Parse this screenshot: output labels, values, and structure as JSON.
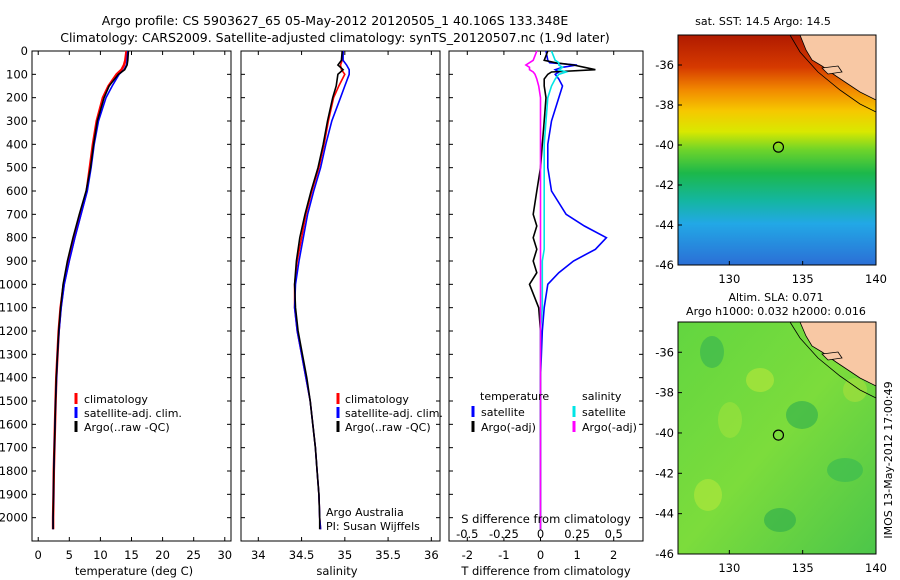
{
  "header": {
    "line1": "Argo profile: CS 5903627_65 05-May-2012 20120505_1 40.106S 133.348E",
    "line2": "Climatology: CARS2009. Satellite-adjusted climatology: synTS_20120507.nc (1.9d later)"
  },
  "side_label": "IMOS 13-May-2012 17:00:49",
  "map_top": {
    "title": "sat. SST: 14.5 Argo: 14.5"
  },
  "map_bottom": {
    "title1": "Altim. SLA: 0.071",
    "title2": "Argo h1000: 0.032 h2000: 0.016"
  },
  "notes": {
    "credit1": "Argo Australia",
    "credit2": "PI: Susan Wijffels"
  },
  "legend_profiles": [
    "climatology",
    "satellite-adj. clim.",
    "Argo(..raw -QC)"
  ],
  "legend_diff": {
    "temp_head": "temperature",
    "sal_head": "salinity",
    "items": [
      "satellite",
      "Argo(-adj)",
      "satellite",
      "Argo(-adj)"
    ]
  },
  "colors": {
    "climatology": "#ff0000",
    "satellite": "#0000ff",
    "argo": "#000000",
    "sal_satellite": "#00e5e5",
    "sal_argo": "#ff00ff"
  },
  "chart_data": [
    {
      "type": "line",
      "xlabel": "temperature (deg C)",
      "ylim": [
        2100,
        0
      ],
      "xlim": [
        -1,
        31
      ],
      "xticks": [
        0,
        5,
        10,
        15,
        20,
        25,
        30
      ],
      "yticks": [
        0,
        100,
        200,
        300,
        400,
        500,
        600,
        700,
        800,
        900,
        1000,
        1100,
        1200,
        1300,
        1400,
        1500,
        1600,
        1700,
        1800,
        1900,
        2000
      ],
      "depth": [
        0,
        40,
        60,
        80,
        100,
        150,
        200,
        300,
        400,
        500,
        600,
        700,
        800,
        900,
        1000,
        1100,
        1200,
        1300,
        1400,
        1500,
        1600,
        1700,
        1800,
        1900,
        2000,
        2050
      ],
      "series": [
        {
          "name": "climatology",
          "values": [
            14.2,
            14.0,
            13.8,
            13.4,
            12.6,
            11.3,
            10.4,
            9.4,
            8.8,
            8.3,
            7.8,
            6.8,
            5.8,
            4.9,
            4.1,
            3.6,
            3.3,
            3.1,
            2.9,
            2.8,
            2.7,
            2.6,
            2.5,
            2.45,
            2.4,
            2.4
          ]
        },
        {
          "name": "satellite-adj. clim.",
          "values": [
            14.4,
            14.3,
            14.2,
            13.8,
            13.0,
            11.9,
            10.9,
            9.7,
            9.0,
            8.5,
            7.9,
            6.9,
            5.9,
            5.0,
            4.2,
            3.7,
            3.35,
            3.1,
            2.95,
            2.8,
            2.7,
            2.6,
            2.5,
            2.45,
            2.4,
            2.4
          ]
        },
        {
          "name": "Argo(..raw -QC)",
          "values": [
            14.5,
            14.4,
            14.3,
            13.9,
            12.9,
            11.4,
            10.6,
            9.5,
            8.9,
            8.4,
            7.7,
            6.6,
            5.6,
            4.7,
            4.0,
            3.6,
            3.3,
            3.1,
            2.9,
            2.8,
            2.7,
            2.6,
            2.5,
            2.45,
            2.4,
            2.4
          ]
        }
      ]
    },
    {
      "type": "line",
      "xlabel": "salinity",
      "ylim": [
        2100,
        0
      ],
      "xlim": [
        33.8,
        36.1
      ],
      "xticks": [
        34,
        34.5,
        35,
        35.5,
        36
      ],
      "depth": [
        0,
        40,
        60,
        80,
        100,
        150,
        200,
        300,
        400,
        500,
        600,
        700,
        800,
        900,
        1000,
        1100,
        1200,
        1300,
        1400,
        1500,
        1600,
        1700,
        1800,
        1900,
        2000,
        2050
      ],
      "series": [
        {
          "name": "climatology",
          "values": [
            34.98,
            34.97,
            34.95,
            34.96,
            35.0,
            34.93,
            34.87,
            34.81,
            34.76,
            34.7,
            34.62,
            34.55,
            34.5,
            34.45,
            34.42,
            34.42,
            34.45,
            34.5,
            34.55,
            34.6,
            34.63,
            34.66,
            34.68,
            34.7,
            34.71,
            34.72
          ]
        },
        {
          "name": "satellite-adj. clim.",
          "values": [
            34.98,
            34.98,
            35.02,
            35.05,
            35.05,
            35.0,
            34.95,
            34.85,
            34.78,
            34.72,
            34.64,
            34.57,
            34.52,
            34.47,
            34.43,
            34.42,
            34.45,
            34.5,
            34.55,
            34.6,
            34.63,
            34.66,
            34.68,
            34.7,
            34.71,
            34.72
          ]
        },
        {
          "name": "Argo(..raw -QC)",
          "values": [
            34.97,
            34.96,
            34.92,
            34.98,
            34.92,
            34.9,
            34.86,
            34.8,
            34.75,
            34.69,
            34.61,
            34.54,
            34.48,
            34.44,
            34.42,
            34.43,
            34.46,
            34.51,
            34.56,
            34.6,
            34.63,
            34.66,
            34.68,
            34.7,
            34.71,
            34.71
          ]
        }
      ]
    },
    {
      "type": "line",
      "xlabel": "T difference from climatology",
      "xlabel_top": "S difference from climatology",
      "ylim": [
        2100,
        0
      ],
      "xlim": [
        -2.5,
        2.8
      ],
      "xticks": [
        -2,
        -1,
        0,
        1,
        2
      ],
      "xticks_top": [
        "-0.5",
        "-0.25",
        "0",
        "0.25",
        "0.5"
      ],
      "depth": [
        0,
        40,
        50,
        60,
        70,
        80,
        90,
        100,
        120,
        150,
        200,
        300,
        400,
        500,
        600,
        700,
        750,
        800,
        850,
        900,
        950,
        1000,
        1100,
        1200,
        1400,
        1600,
        1800,
        2000,
        2050
      ],
      "series": [
        {
          "name": "T satellite",
          "values": [
            0.15,
            0.2,
            0.25,
            1.0,
            0.6,
            0.4,
            0.5,
            0.4,
            0.5,
            0.6,
            0.5,
            0.3,
            0.2,
            0.2,
            0.3,
            0.7,
            1.2,
            1.8,
            1.5,
            0.9,
            0.5,
            0.2,
            0.1,
            0.05,
            0.0,
            0.0,
            0.0,
            0.0,
            0.0
          ]
        },
        {
          "name": "T Argo(-adj)",
          "values": [
            0.2,
            0.1,
            0.4,
            0.9,
            1.2,
            1.5,
            0.3,
            0.2,
            0.1,
            0.1,
            0.15,
            0.1,
            0.05,
            0.0,
            -0.1,
            -0.2,
            -0.1,
            -0.2,
            -0.1,
            -0.2,
            -0.1,
            -0.3,
            -0.05,
            0.0,
            0.0,
            0.0,
            0.0,
            0.0,
            0.0
          ]
        },
        {
          "name": "S satellite",
          "values": [
            0.3,
            0.4,
            0.5,
            0.5,
            0.6,
            0.5,
            0.7,
            0.5,
            0.4,
            0.3,
            0.2,
            0.15,
            0.1,
            0.1,
            0.1,
            0.1,
            0.1,
            0.1,
            0.1,
            0.05,
            0.05,
            0.05,
            0.05,
            0.0,
            0.0,
            0.0,
            0.0,
            0.0,
            0.0
          ]
        },
        {
          "name": "S Argo(-adj)",
          "values": [
            -0.1,
            -0.2,
            -0.3,
            -0.4,
            -0.3,
            -0.3,
            -0.2,
            -0.15,
            -0.1,
            -0.05,
            0.0,
            0.0,
            0.0,
            0.0,
            0.0,
            0.0,
            0.0,
            0.0,
            0.0,
            0.0,
            0.0,
            0.0,
            0.0,
            0.0,
            0.0,
            0.0,
            0.0,
            0.0,
            0.0
          ]
        }
      ]
    },
    {
      "type": "heatmap",
      "title": "sat. SST: 14.5 Argo: 14.5",
      "xlim": [
        126.5,
        140
      ],
      "ylim": [
        -46,
        -34.5
      ],
      "xticks": [
        130,
        135,
        140
      ],
      "yticks": [
        -36,
        -38,
        -40,
        -42,
        -44,
        -46
      ],
      "marker": {
        "lon": 133.348,
        "lat": -40.106
      }
    },
    {
      "type": "heatmap",
      "title": "Altim. SLA: 0.071",
      "xlim": [
        126.5,
        140
      ],
      "ylim": [
        -46,
        -34.5
      ],
      "xticks": [
        130,
        135,
        140
      ],
      "yticks": [
        -36,
        -38,
        -40,
        -42,
        -44,
        -46
      ],
      "marker": {
        "lon": 133.348,
        "lat": -40.106
      }
    }
  ]
}
